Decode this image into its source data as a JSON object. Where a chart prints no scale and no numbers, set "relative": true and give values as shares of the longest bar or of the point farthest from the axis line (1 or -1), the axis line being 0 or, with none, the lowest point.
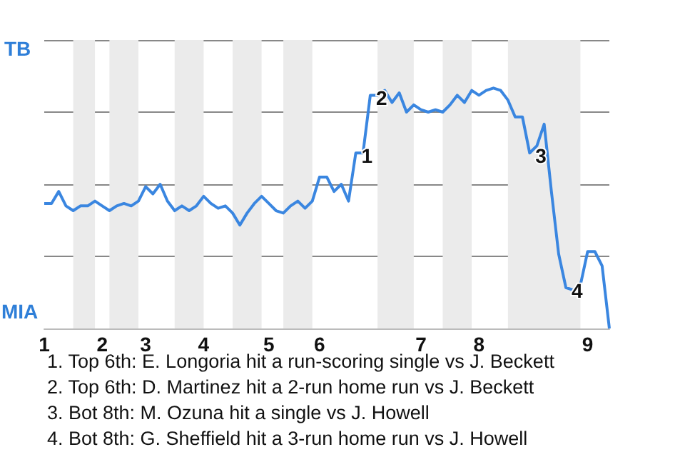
{
  "chart_data": {
    "type": "line",
    "relative": true,
    "categories": [
      "1",
      null,
      null,
      null,
      null,
      null,
      null,
      null,
      "2",
      null,
      null,
      null,
      null,
      null,
      "3",
      null,
      null,
      null,
      null,
      null,
      null,
      null,
      "4",
      null,
      null,
      null,
      null,
      null,
      null,
      null,
      null,
      "5",
      null,
      null,
      null,
      null,
      null,
      null,
      "6",
      null,
      null,
      null,
      null,
      null,
      null,
      null,
      null,
      null,
      null,
      null,
      null,
      null,
      "7",
      null,
      null,
      null,
      null,
      null,
      null,
      null,
      "8",
      null,
      null,
      null,
      null,
      null,
      null,
      null,
      null,
      null,
      null,
      null,
      null,
      null,
      null,
      "9",
      null,
      null,
      null
    ],
    "series": [
      {
        "color": "#3a86e0",
        "values": [
          0.52,
          0.52,
          0.57,
          0.51,
          0.49,
          0.51,
          0.51,
          0.53,
          0.51,
          0.49,
          0.51,
          0.52,
          0.51,
          0.53,
          0.59,
          0.56,
          0.6,
          0.53,
          0.49,
          0.51,
          0.49,
          0.51,
          0.55,
          0.52,
          0.5,
          0.51,
          0.48,
          0.43,
          0.48,
          0.52,
          0.55,
          0.52,
          0.49,
          0.48,
          0.51,
          0.53,
          0.5,
          0.53,
          0.63,
          0.63,
          0.57,
          0.6,
          0.53,
          0.73,
          0.73,
          0.97,
          0.97,
          0.99,
          0.94,
          0.98,
          0.9,
          0.93,
          0.91,
          0.9,
          0.91,
          0.9,
          0.93,
          0.97,
          0.94,
          0.99,
          0.97,
          0.99,
          1,
          0.99,
          0.95,
          0.88,
          0.88,
          0.73,
          0.76,
          0.85,
          0.57,
          0.31,
          0.17,
          0.16,
          0.18,
          0.32,
          0.32,
          0.26,
          0
        ]
      }
    ],
    "grid": "y",
    "annotations": [
      "TB",
      "MIA",
      {
        "text": "1",
        "y": 0.73
      },
      {
        "text": "2",
        "y": 0.97
      },
      {
        "text": "3",
        "y": 0.73
      },
      {
        "text": "4",
        "y": 0.17
      },
      "1. Top 6th: E. Longoria hit a run-scoring single vs J. Beckett",
      "2. Top 6th: D. Martinez hit a 2-run home run vs J. Beckett",
      "3. Bot 8th: M. Ozuna hit a single vs J. Howell",
      "4. Bot 8th: G. Sheffield hit a 3-run home run vs J. Howell"
    ]
  }
}
